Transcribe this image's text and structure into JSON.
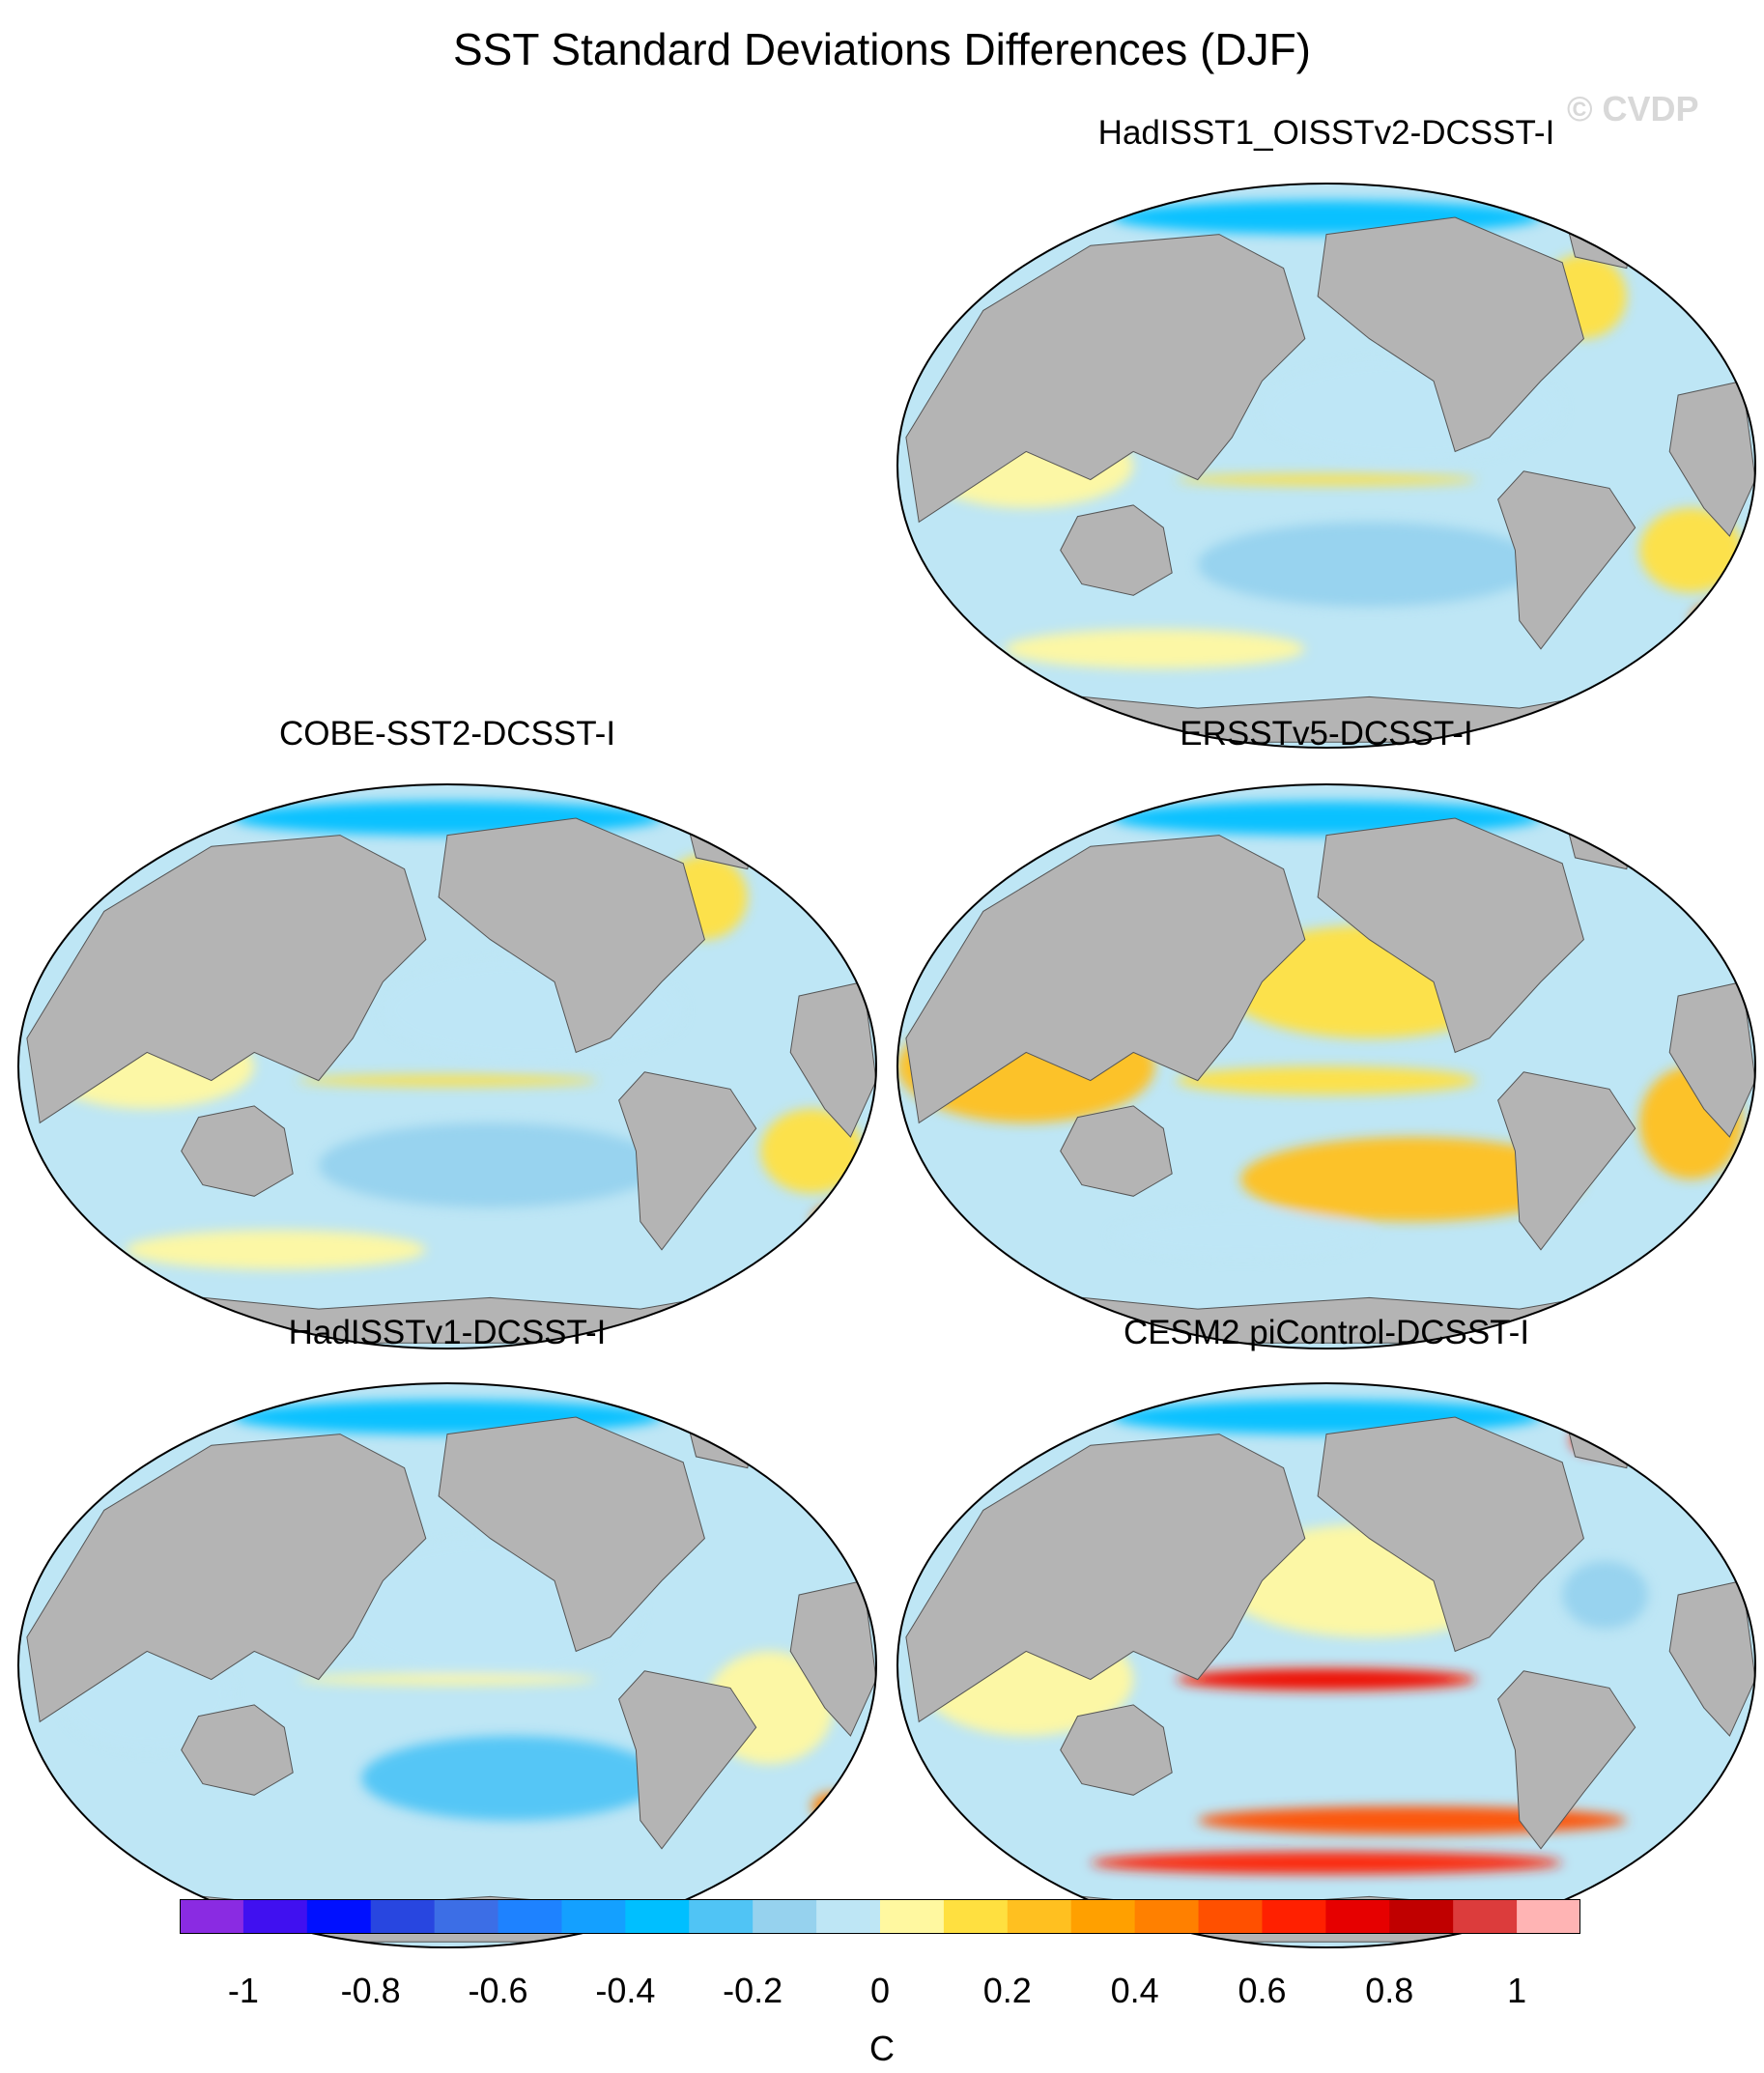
{
  "figure": {
    "title": "SST Standard Deviations Differences (DJF)",
    "watermark": "© CVDP"
  },
  "panels": [
    {
      "id": "hadisst1-oisstv2",
      "title": "HadISST1_OISSTv2-DCSST-I",
      "pattern": "mixed"
    },
    {
      "id": "cobe-sst2",
      "title": "COBE-SST2-DCSST-I",
      "pattern": "mixed"
    },
    {
      "id": "ersstv5",
      "title": "ERSSTv5-DCSST-I",
      "pattern": "warm"
    },
    {
      "id": "hadisstv1",
      "title": "HadISSTv1-DCSST-I",
      "pattern": "cool"
    },
    {
      "id": "cesm2-picontrol",
      "title": "CESM2 piControl-DCSST-I",
      "pattern": "strong"
    }
  ],
  "colorbar": {
    "units": "C",
    "boundaries": [
      -1.1,
      -1.0,
      -0.9,
      -0.8,
      -0.7,
      -0.6,
      -0.5,
      -0.4,
      -0.3,
      -0.2,
      -0.1,
      0,
      0.1,
      0.2,
      0.3,
      0.4,
      0.5,
      0.6,
      0.7,
      0.8,
      0.9,
      1.0,
      1.1
    ],
    "colors": [
      "#8a2be2",
      "#4010f0",
      "#0010ff",
      "#2846e0",
      "#3c6ee6",
      "#1e82ff",
      "#14a0ff",
      "#00bfff",
      "#50c4f5",
      "#96d2ee",
      "#bee6f5",
      "#fff8a0",
      "#ffe040",
      "#ffc020",
      "#ffa000",
      "#ff8000",
      "#ff5000",
      "#ff2000",
      "#e60000",
      "#c00000",
      "#dc3c3c",
      "#ffb4b4"
    ],
    "tick_labels": [
      "-1",
      "-0.8",
      "-0.6",
      "-0.4",
      "-0.2",
      "0",
      "0.2",
      "0.4",
      "0.6",
      "0.8",
      "1"
    ]
  }
}
